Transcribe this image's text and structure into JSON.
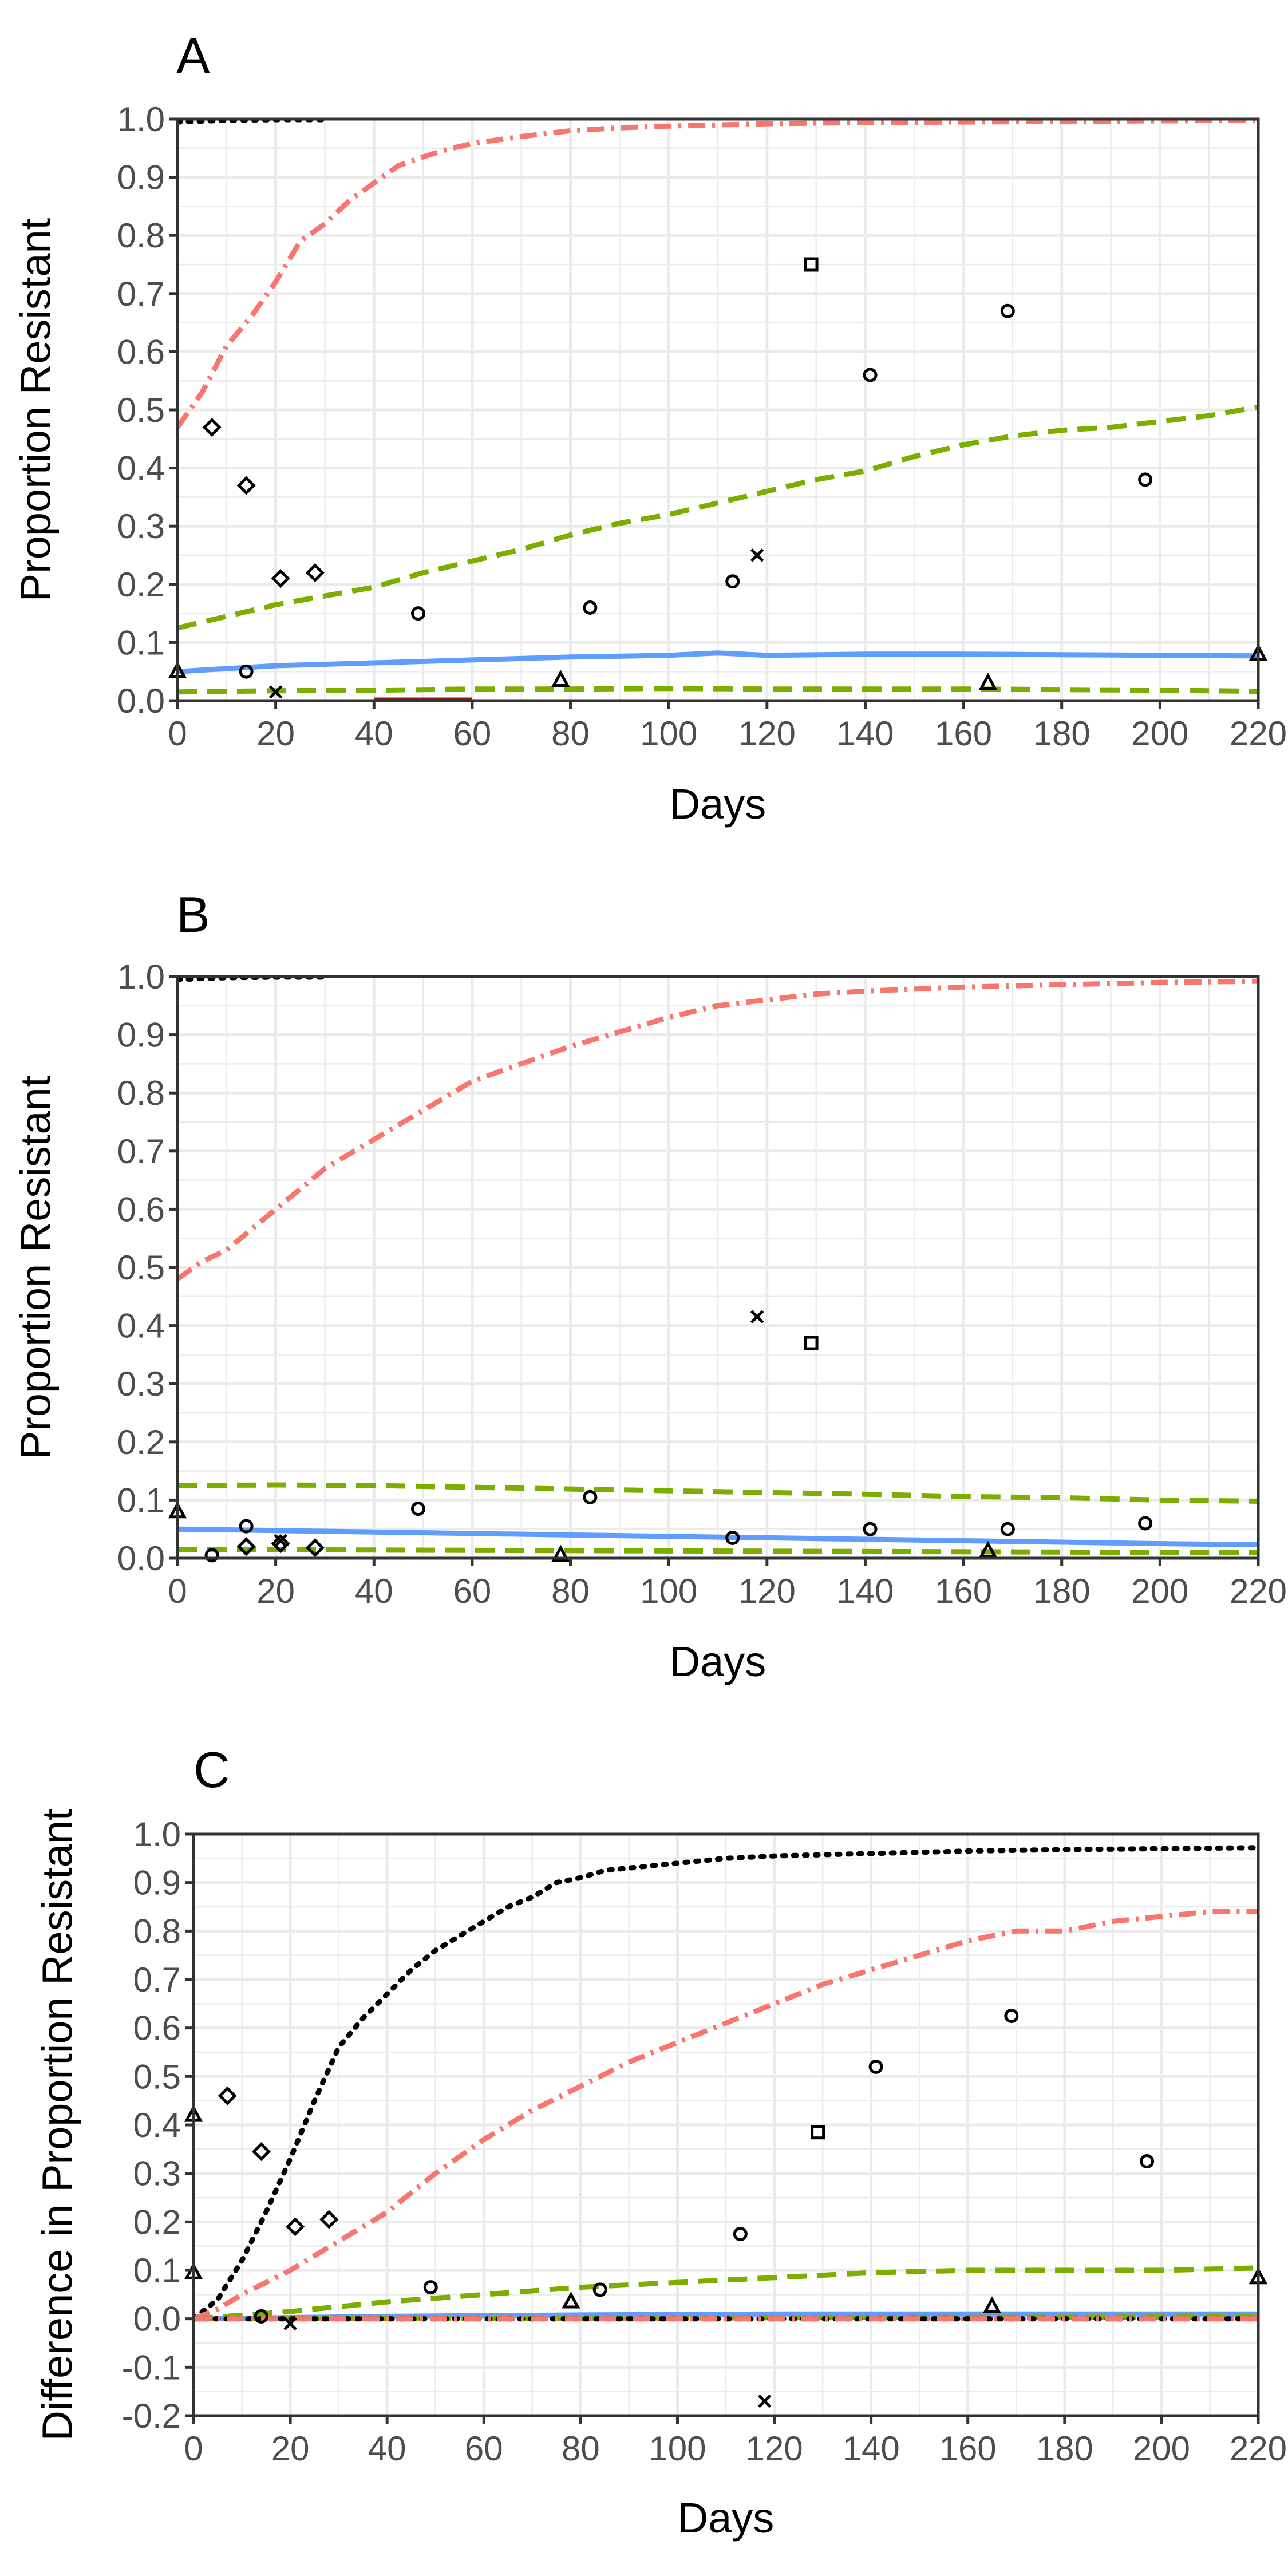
{
  "chart_data": [
    {
      "panel": "A",
      "type": "line",
      "xlabel": "Days",
      "ylabel": "Proportion Resistant",
      "xlim": [
        0,
        220
      ],
      "ylim": [
        0,
        1
      ],
      "x_ticks": [
        "0",
        "20",
        "40",
        "60",
        "80",
        "100",
        "120",
        "140",
        "160",
        "180",
        "200",
        "220"
      ],
      "y_ticks": [
        "0.0",
        "0.1",
        "0.2",
        "0.3",
        "0.4",
        "0.5",
        "0.6",
        "0.7",
        "0.8",
        "0.9",
        "1.0"
      ],
      "grid": true,
      "series": [
        {
          "style": "dotted",
          "color": "#000000",
          "x": [
            0,
            10,
            20,
            30
          ],
          "y": [
            0.995,
            0.998,
            0.999,
            0.999
          ]
        },
        {
          "style": "dashdot",
          "color": "#f8766d",
          "x": [
            0,
            5,
            10,
            15,
            20,
            25,
            30,
            35,
            40,
            45,
            50,
            55,
            60,
            70,
            80,
            90,
            100,
            110,
            120,
            140,
            160,
            180,
            200,
            220
          ],
          "y": [
            0.47,
            0.53,
            0.61,
            0.66,
            0.72,
            0.79,
            0.82,
            0.86,
            0.89,
            0.92,
            0.935,
            0.948,
            0.958,
            0.97,
            0.98,
            0.985,
            0.988,
            0.99,
            0.992,
            0.994,
            0.995,
            0.996,
            0.997,
            0.998
          ]
        },
        {
          "style": "dashed",
          "color": "#7cae00",
          "x": [
            0,
            10,
            20,
            30,
            40,
            50,
            60,
            70,
            80,
            90,
            100,
            110,
            120,
            130,
            140,
            150,
            160,
            170,
            180,
            190,
            200,
            210,
            220
          ],
          "y": [
            0.125,
            0.145,
            0.165,
            0.18,
            0.195,
            0.22,
            0.24,
            0.26,
            0.285,
            0.305,
            0.32,
            0.34,
            0.36,
            0.38,
            0.395,
            0.42,
            0.44,
            0.455,
            0.465,
            0.47,
            0.48,
            0.49,
            0.505
          ]
        },
        {
          "style": "solid",
          "color": "#619cff",
          "x": [
            0,
            20,
            40,
            60,
            80,
            100,
            110,
            120,
            140,
            160,
            180,
            200,
            220
          ],
          "y": [
            0.05,
            0.06,
            0.065,
            0.07,
            0.075,
            0.078,
            0.082,
            0.078,
            0.08,
            0.08,
            0.079,
            0.078,
            0.077
          ]
        },
        {
          "style": "dashed",
          "color": "#7cae00",
          "x": [
            0,
            20,
            40,
            60,
            80,
            100,
            120,
            140,
            160,
            180,
            200,
            220
          ],
          "y": [
            0.015,
            0.017,
            0.018,
            0.02,
            0.02,
            0.021,
            0.02,
            0.02,
            0.02,
            0.019,
            0.018,
            0.016
          ]
        },
        {
          "style": "solid",
          "color": "#8b1a1a",
          "x": [
            40,
            60
          ],
          "y": [
            0.001,
            0.001
          ]
        }
      ],
      "points": [
        {
          "marker": "diamond",
          "x": 7,
          "y": 0.47
        },
        {
          "marker": "diamond",
          "x": 14,
          "y": 0.37
        },
        {
          "marker": "diamond",
          "x": 21,
          "y": 0.21
        },
        {
          "marker": "diamond",
          "x": 28,
          "y": 0.22
        },
        {
          "marker": "circle",
          "x": 14,
          "y": 0.05
        },
        {
          "marker": "circle",
          "x": 49,
          "y": 0.15
        },
        {
          "marker": "circle",
          "x": 84,
          "y": 0.16
        },
        {
          "marker": "circle",
          "x": 113,
          "y": 0.205
        },
        {
          "marker": "circle",
          "x": 141,
          "y": 0.56
        },
        {
          "marker": "circle",
          "x": 169,
          "y": 0.67
        },
        {
          "marker": "circle",
          "x": 197,
          "y": 0.38
        },
        {
          "marker": "square",
          "x": 129,
          "y": 0.75
        },
        {
          "marker": "cross",
          "x": 118,
          "y": 0.25
        },
        {
          "marker": "cross",
          "x": 20,
          "y": 0.015
        },
        {
          "marker": "triangle",
          "x": 78,
          "y": 0.035
        },
        {
          "marker": "triangle",
          "x": 165,
          "y": 0.03
        },
        {
          "marker": "triangle",
          "x": 0,
          "y": 0.05
        },
        {
          "marker": "triangle",
          "x": 220,
          "y": 0.08
        }
      ]
    },
    {
      "panel": "B",
      "type": "line",
      "xlabel": "Days",
      "ylabel": "Proportion Resistant",
      "xlim": [
        0,
        220
      ],
      "ylim": [
        0,
        1
      ],
      "x_ticks": [
        "0",
        "20",
        "40",
        "60",
        "80",
        "100",
        "120",
        "140",
        "160",
        "180",
        "200",
        "220"
      ],
      "y_ticks": [
        "0.0",
        "0.1",
        "0.2",
        "0.3",
        "0.4",
        "0.5",
        "0.6",
        "0.7",
        "0.8",
        "0.9",
        "1.0"
      ],
      "grid": true,
      "series": [
        {
          "style": "dotted",
          "color": "#000000",
          "x": [
            0,
            10,
            20,
            30
          ],
          "y": [
            0.995,
            0.998,
            0.999,
            0.999
          ]
        },
        {
          "style": "dashdot",
          "color": "#f8766d",
          "x": [
            0,
            5,
            10,
            20,
            30,
            40,
            50,
            60,
            70,
            80,
            90,
            100,
            110,
            120,
            130,
            140,
            160,
            180,
            200,
            220
          ],
          "y": [
            0.48,
            0.51,
            0.53,
            0.6,
            0.67,
            0.72,
            0.77,
            0.82,
            0.85,
            0.88,
            0.905,
            0.93,
            0.95,
            0.96,
            0.97,
            0.975,
            0.982,
            0.986,
            0.99,
            0.992
          ]
        },
        {
          "style": "dashed",
          "color": "#7cae00",
          "x": [
            0,
            20,
            40,
            60,
            80,
            100,
            120,
            140,
            160,
            180,
            200,
            220
          ],
          "y": [
            0.125,
            0.126,
            0.125,
            0.122,
            0.119,
            0.116,
            0.113,
            0.11,
            0.106,
            0.104,
            0.1,
            0.098
          ]
        },
        {
          "style": "solid",
          "color": "#619cff",
          "x": [
            0,
            40,
            80,
            120,
            160,
            200,
            220
          ],
          "y": [
            0.05,
            0.045,
            0.04,
            0.035,
            0.03,
            0.025,
            0.023
          ]
        },
        {
          "style": "dashed",
          "color": "#7cae00",
          "x": [
            0,
            40,
            80,
            120,
            160,
            200,
            220
          ],
          "y": [
            0.015,
            0.014,
            0.013,
            0.012,
            0.011,
            0.01,
            0.01
          ]
        }
      ],
      "points": [
        {
          "marker": "cross",
          "x": 118,
          "y": 0.415
        },
        {
          "marker": "square",
          "x": 129,
          "y": 0.37
        },
        {
          "marker": "circle",
          "x": 7,
          "y": 0.005
        },
        {
          "marker": "circle",
          "x": 14,
          "y": 0.055
        },
        {
          "marker": "circle",
          "x": 49,
          "y": 0.085
        },
        {
          "marker": "circle",
          "x": 84,
          "y": 0.105
        },
        {
          "marker": "circle",
          "x": 113,
          "y": 0.035
        },
        {
          "marker": "circle",
          "x": 141,
          "y": 0.05
        },
        {
          "marker": "circle",
          "x": 169,
          "y": 0.05
        },
        {
          "marker": "circle",
          "x": 197,
          "y": 0.06
        },
        {
          "marker": "diamond",
          "x": 14,
          "y": 0.02
        },
        {
          "marker": "diamond",
          "x": 21,
          "y": 0.025
        },
        {
          "marker": "diamond",
          "x": 28,
          "y": 0.018
        },
        {
          "marker": "cross",
          "x": 21,
          "y": 0.03
        },
        {
          "marker": "triangle",
          "x": 78,
          "y": 0.005
        },
        {
          "marker": "triangle",
          "x": 165,
          "y": 0.012
        },
        {
          "marker": "triangle",
          "x": 0,
          "y": 0.08
        }
      ]
    },
    {
      "panel": "C",
      "type": "line",
      "xlabel": "Days",
      "ylabel": "Difference in Proportion Resistant",
      "xlim": [
        0,
        220
      ],
      "ylim": [
        -0.2,
        1
      ],
      "x_ticks": [
        "0",
        "20",
        "40",
        "60",
        "80",
        "100",
        "120",
        "140",
        "160",
        "180",
        "200",
        "220"
      ],
      "y_ticks": [
        "-0.2",
        "-0.1",
        "0.0",
        "0.1",
        "0.2",
        "0.3",
        "0.4",
        "0.5",
        "0.6",
        "0.7",
        "0.8",
        "0.9",
        "1.0"
      ],
      "grid": true,
      "series": [
        {
          "style": "dotted",
          "color": "#000000",
          "x": [
            0,
            5,
            10,
            15,
            20,
            25,
            30,
            35,
            40,
            45,
            50,
            55,
            60,
            65,
            70,
            75,
            80,
            85,
            90,
            100,
            110,
            120,
            140,
            160,
            180,
            200,
            220
          ],
          "y": [
            0.0,
            0.04,
            0.12,
            0.22,
            0.33,
            0.45,
            0.56,
            0.62,
            0.67,
            0.72,
            0.76,
            0.79,
            0.82,
            0.85,
            0.87,
            0.9,
            0.91,
            0.925,
            0.93,
            0.94,
            0.95,
            0.955,
            0.96,
            0.965,
            0.968,
            0.97,
            0.972
          ]
        },
        {
          "style": "dashdot",
          "color": "#f8766d",
          "x": [
            0,
            5,
            10,
            20,
            30,
            40,
            50,
            60,
            70,
            80,
            90,
            100,
            110,
            120,
            130,
            140,
            150,
            160,
            170,
            180,
            190,
            200,
            210,
            220
          ],
          "y": [
            0.0,
            0.02,
            0.05,
            0.1,
            0.16,
            0.22,
            0.3,
            0.37,
            0.43,
            0.48,
            0.53,
            0.57,
            0.61,
            0.65,
            0.69,
            0.72,
            0.75,
            0.78,
            0.8,
            0.8,
            0.82,
            0.83,
            0.84,
            0.84
          ]
        },
        {
          "style": "dashed",
          "color": "#7cae00",
          "x": [
            0,
            20,
            40,
            60,
            80,
            100,
            120,
            140,
            160,
            180,
            200,
            220
          ],
          "y": [
            0.0,
            0.015,
            0.035,
            0.05,
            0.065,
            0.075,
            0.085,
            0.095,
            0.1,
            0.1,
            0.1,
            0.105
          ]
        },
        {
          "style": "solid",
          "color": "#619cff",
          "x": [
            0,
            40,
            80,
            120,
            160,
            200,
            220
          ],
          "y": [
            0.0,
            0.005,
            0.008,
            0.01,
            0.01,
            0.01,
            0.01
          ]
        },
        {
          "style": "dashed",
          "color": "#7cae00",
          "x": [
            0,
            220
          ],
          "y": [
            0.0,
            0.004
          ]
        },
        {
          "style": "dotted",
          "color": "#000000",
          "x": [
            0,
            220
          ],
          "y": [
            0.0,
            0.0
          ]
        },
        {
          "style": "dashdot",
          "color": "#f8766d",
          "x": [
            0,
            220
          ],
          "y": [
            0.0,
            0.0
          ]
        }
      ],
      "points": [
        {
          "marker": "diamond",
          "x": 7,
          "y": 0.46
        },
        {
          "marker": "diamond",
          "x": 14,
          "y": 0.345
        },
        {
          "marker": "diamond",
          "x": 21,
          "y": 0.19
        },
        {
          "marker": "diamond",
          "x": 28,
          "y": 0.205
        },
        {
          "marker": "circle",
          "x": 14,
          "y": 0.005
        },
        {
          "marker": "circle",
          "x": 49,
          "y": 0.065
        },
        {
          "marker": "circle",
          "x": 84,
          "y": 0.06
        },
        {
          "marker": "circle",
          "x": 113,
          "y": 0.175
        },
        {
          "marker": "circle",
          "x": 141,
          "y": 0.52
        },
        {
          "marker": "circle",
          "x": 169,
          "y": 0.625
        },
        {
          "marker": "circle",
          "x": 197,
          "y": 0.325
        },
        {
          "marker": "square",
          "x": 129,
          "y": 0.385
        },
        {
          "marker": "cross",
          "x": 118,
          "y": -0.17
        },
        {
          "marker": "cross",
          "x": 20,
          "y": -0.01
        },
        {
          "marker": "triangle",
          "x": 78,
          "y": 0.035
        },
        {
          "marker": "triangle",
          "x": 165,
          "y": 0.025
        },
        {
          "marker": "triangle",
          "x": 0,
          "y": 0.42
        },
        {
          "marker": "triangle",
          "x": 0,
          "y": 0.095
        },
        {
          "marker": "triangle",
          "x": 220,
          "y": 0.085
        }
      ]
    }
  ]
}
